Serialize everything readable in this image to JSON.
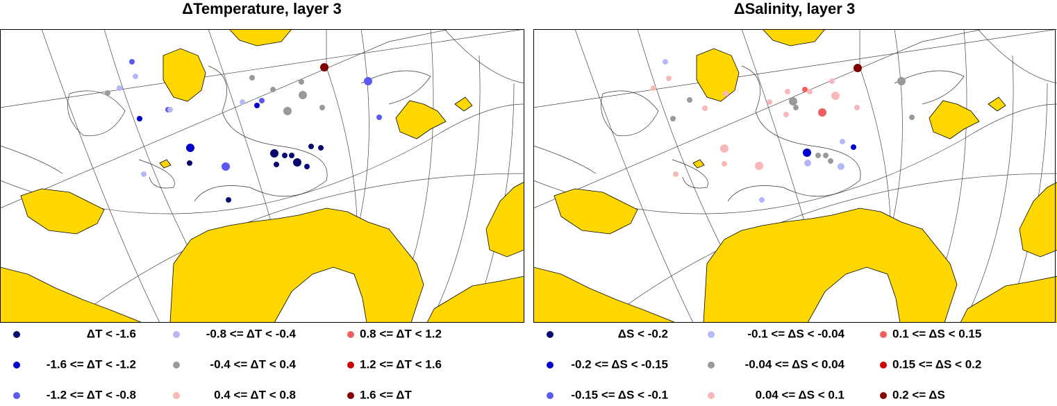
{
  "panels": [
    {
      "title": "ΔTemperature, layer 3",
      "legend": [
        {
          "label": "ΔT < -1.6",
          "color": "#0a0a6e"
        },
        {
          "label": "-1.6 <= ΔT < -1.2",
          "color": "#0000cc"
        },
        {
          "label": "-1.2 <= ΔT < -0.8",
          "color": "#5a5af0"
        },
        {
          "label": "-0.8 <= ΔT < -0.4",
          "color": "#b4b8f6"
        },
        {
          "label": "-0.4 <= ΔT < 0.4",
          "color": "#999999"
        },
        {
          "label": "0.4 <= ΔT < 0.8",
          "color": "#f8b8b8"
        },
        {
          "label": "0.8 <= ΔT < 1.2",
          "color": "#f06060"
        },
        {
          "label": "1.2 <= ΔT < 1.6",
          "color": "#cc0000"
        },
        {
          "label": "1.6 <= ΔT",
          "color": "#800000"
        }
      ]
    },
    {
      "title": "ΔSalinity, layer 3",
      "legend": [
        {
          "label": "ΔS < -0.2",
          "color": "#0a0a6e"
        },
        {
          "label": "-0.2 <= ΔS < -0.15",
          "color": "#0000cc"
        },
        {
          "label": "-0.15 <= ΔS < -0.1",
          "color": "#5a5af0"
        },
        {
          "label": "-0.1 <= ΔS < -0.04",
          "color": "#b4b8f6"
        },
        {
          "label": "-0.04 <= ΔS < 0.04",
          "color": "#999999"
        },
        {
          "label": "0.04 <= ΔS < 0.1",
          "color": "#f8b8b8"
        },
        {
          "label": "0.1 <= ΔS < 0.15",
          "color": "#f06060"
        },
        {
          "label": "0.15 <= ΔS < 0.2",
          "color": "#cc0000"
        },
        {
          "label": "0.2 <= ΔS",
          "color": "#800000"
        }
      ]
    }
  ]
}
